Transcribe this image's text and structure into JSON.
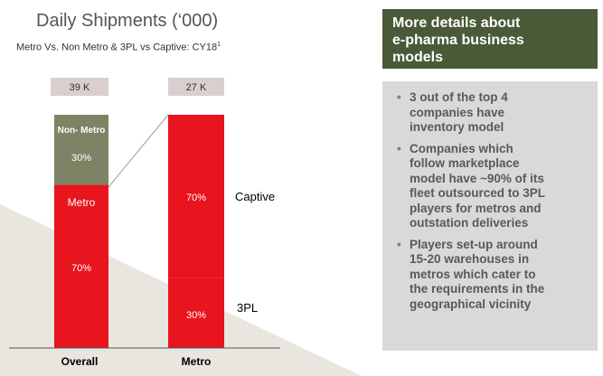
{
  "title": "Daily Shipments (‘000)",
  "subtitle": "Metro Vs. Non Metro & 3PL vs Captive: CY18",
  "subtitle_sup": "1",
  "colors": {
    "red": "#e8141e",
    "olive": "#7d8466",
    "total_box": "#d9cfcf",
    "panel_dark": "#4a5a38",
    "panel_light": "#d9d9d9"
  },
  "chart_data": {
    "type": "bar",
    "stacked": true,
    "categories": [
      "Overall",
      "Metro"
    ],
    "totals": [
      "39 K",
      "27 K"
    ],
    "bars": [
      {
        "category": "Overall",
        "segments": [
          {
            "label": "Metro",
            "value": 70,
            "display": "70%",
            "color": "#e8141e"
          },
          {
            "label": "Non- Metro",
            "value": 30,
            "display": "30%",
            "color": "#7d8466"
          }
        ]
      },
      {
        "category": "Metro",
        "segments": [
          {
            "label": "3PL",
            "value": 30,
            "display": "30%",
            "color": "#e8141e"
          },
          {
            "label": "Captive",
            "value": 70,
            "display": "70%",
            "color": "#e8141e"
          }
        ]
      }
    ],
    "right_labels": [
      "Captive",
      "3PL"
    ]
  },
  "panel": {
    "header_lines": [
      "More details about",
      "e-pharma business",
      "models"
    ],
    "bullets": [
      {
        "lines": [
          "3 out of the top 4",
          "companies have",
          "inventory model"
        ]
      },
      {
        "lines": [
          "Companies which",
          "follow marketplace",
          "model have ~90% of its",
          "fleet outsourced to 3PL",
          "players for metros and",
          "outstation deliveries"
        ]
      },
      {
        "lines": [
          "Players set-up around",
          "15-20 warehouses in",
          "metros which cater to",
          "the requirements in the",
          "geographical vicinity"
        ]
      }
    ]
  }
}
